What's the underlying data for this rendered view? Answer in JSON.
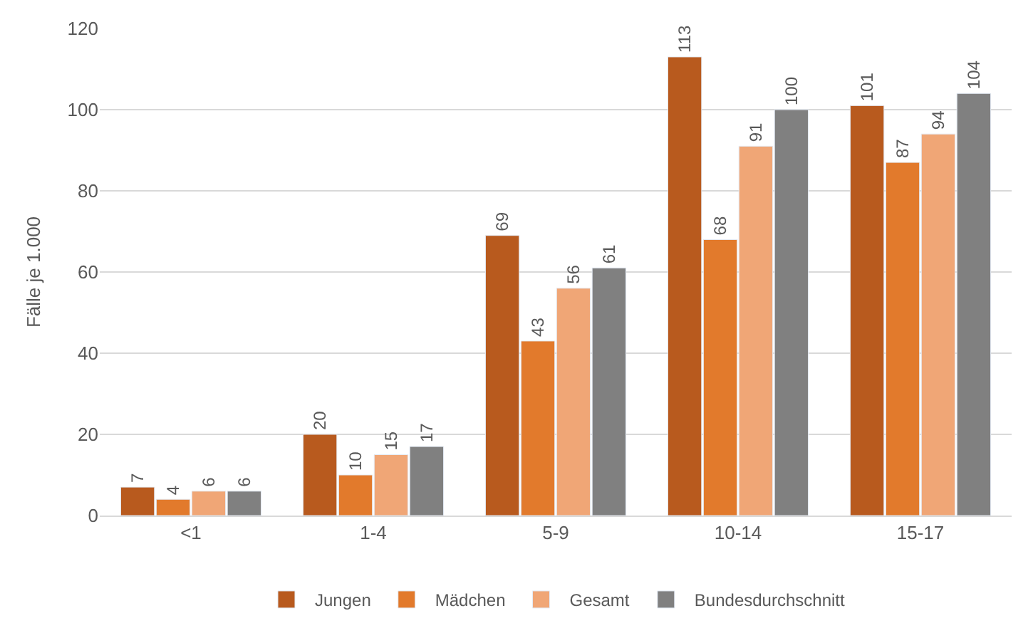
{
  "chart_data": {
    "type": "bar",
    "ylabel": "Fälle je 1.000",
    "categories": [
      "<1",
      "1-4",
      "5-9",
      "10-14",
      "15-17"
    ],
    "series": [
      {
        "name": "Jungen",
        "color": "#b85a1e",
        "values": [
          7,
          20,
          69,
          113,
          101
        ]
      },
      {
        "name": "Mädchen",
        "color": "#e27a2c",
        "values": [
          4,
          10,
          43,
          68,
          87
        ]
      },
      {
        "name": "Gesamt",
        "color": "#f0a676",
        "values": [
          6,
          15,
          56,
          91,
          94
        ]
      },
      {
        "name": "Bundesdurchschnitt",
        "color": "#808080",
        "values": [
          6,
          17,
          61,
          100,
          104
        ]
      }
    ],
    "ylim": [
      0,
      120
    ],
    "yticks": [
      0,
      20,
      40,
      60,
      80,
      100,
      120
    ],
    "grid": "y",
    "legend": "bottom",
    "data_labels": true
  }
}
